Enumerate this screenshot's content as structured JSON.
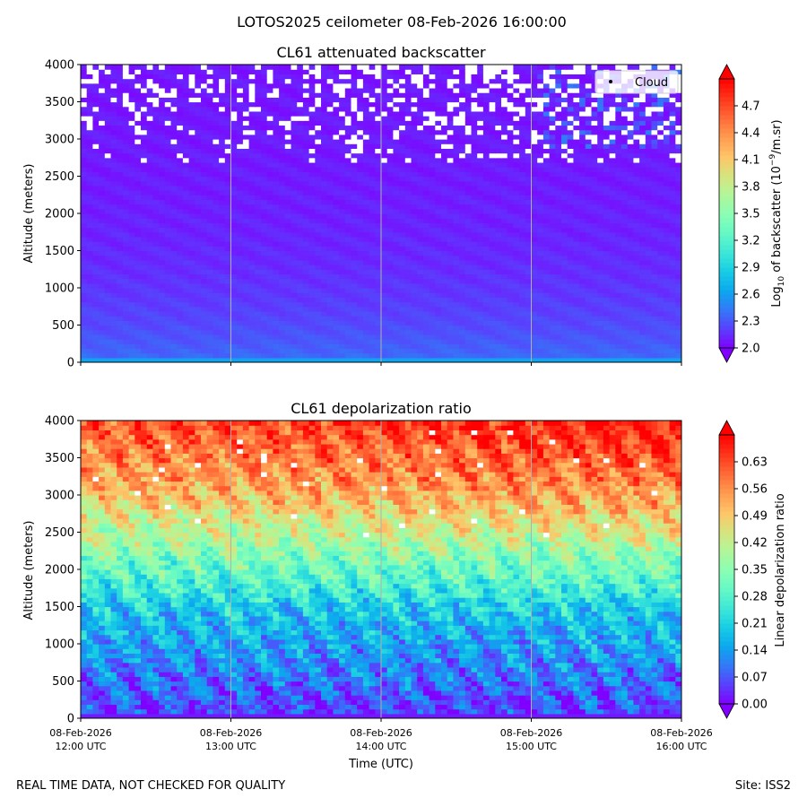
{
  "figure": {
    "suptitle": "LOTOS2025 ceilometer 08-Feb-2026 16:00:00",
    "footer_left": "REAL TIME DATA, NOT CHECKED FOR QUALITY",
    "footer_right": "Site: ISS2"
  },
  "colors": {
    "rainbow": [
      "#8000ff",
      "#5a3ffd",
      "#3379f7",
      "#0ca8ee",
      "#18cde4",
      "#3ee8d6",
      "#65f9c5",
      "#8cfeb3",
      "#b2f698",
      "#d8e37e",
      "#ffc367",
      "#ff9a50",
      "#ff6a37",
      "#ff351c",
      "#ff0000"
    ],
    "cloud_marker": "#000000",
    "gridline": "#b0b0b0"
  },
  "chart_data": [
    {
      "type": "heatmap",
      "title": "CL61 attenuated backscatter",
      "xlabel": "",
      "ylabel": "Altitude (meters)",
      "x_range_hours_utc": [
        12,
        16
      ],
      "ylim": [
        0,
        4000
      ],
      "yticks": [
        0,
        500,
        1000,
        1500,
        2000,
        2500,
        3000,
        3500,
        4000
      ],
      "xticks_hours_utc": [
        12,
        13,
        14,
        15,
        16
      ],
      "xtick_labels": [],
      "vertical_gridlines": true,
      "colorbar": {
        "label_prefix": "Log",
        "label_sub": "10",
        "label_mid": " of backscatter (10",
        "label_sup": "−9",
        "label_suffix": "/m.sr)",
        "range": [
          2.0,
          5.0
        ],
        "ticks": [
          "2.0",
          "2.3",
          "2.6",
          "2.9",
          "3.2",
          "3.5",
          "3.8",
          "4.1",
          "4.4",
          "4.7"
        ],
        "extend": "both"
      },
      "legend": {
        "label": "Cloud",
        "location": "top-right"
      },
      "profile_description": "log10 backscatter ~2.35 near surface decreasing to ~2.05 above 1500 m; thin surface layer ~2.6; scattered missing/cloud patches above ~2700 m"
    },
    {
      "type": "heatmap",
      "title": "CL61 depolarization ratio",
      "xlabel": "Time (UTC)",
      "ylabel": "Altitude (meters)",
      "x_range_hours_utc": [
        12,
        16
      ],
      "ylim": [
        0,
        4000
      ],
      "yticks": [
        0,
        500,
        1000,
        1500,
        2000,
        2500,
        3000,
        3500,
        4000
      ],
      "xticks_hours_utc": [
        12,
        13,
        14,
        15,
        16
      ],
      "xtick_labels": [
        {
          "date": "08-Feb-2026",
          "time": "12:00 UTC"
        },
        {
          "date": "08-Feb-2026",
          "time": "13:00 UTC"
        },
        {
          "date": "08-Feb-2026",
          "time": "14:00 UTC"
        },
        {
          "date": "08-Feb-2026",
          "time": "15:00 UTC"
        },
        {
          "date": "08-Feb-2026",
          "time": "16:00 UTC"
        }
      ],
      "vertical_gridlines": true,
      "colorbar": {
        "label": "Linear depolarization ratio",
        "range": [
          0.0,
          0.7
        ],
        "ticks": [
          "0.00",
          "0.07",
          "0.14",
          "0.21",
          "0.28",
          "0.35",
          "0.42",
          "0.49",
          "0.56",
          "0.63"
        ],
        "extend": "both"
      },
      "profile_description": "depolarization ~0.05 near surface rising to ~0.2 at 1500 m, ~0.38 at 2500 m, ~0.5 at 3000 m, up to ~0.6+ near 3500–4000 m; higher values late in period"
    }
  ]
}
